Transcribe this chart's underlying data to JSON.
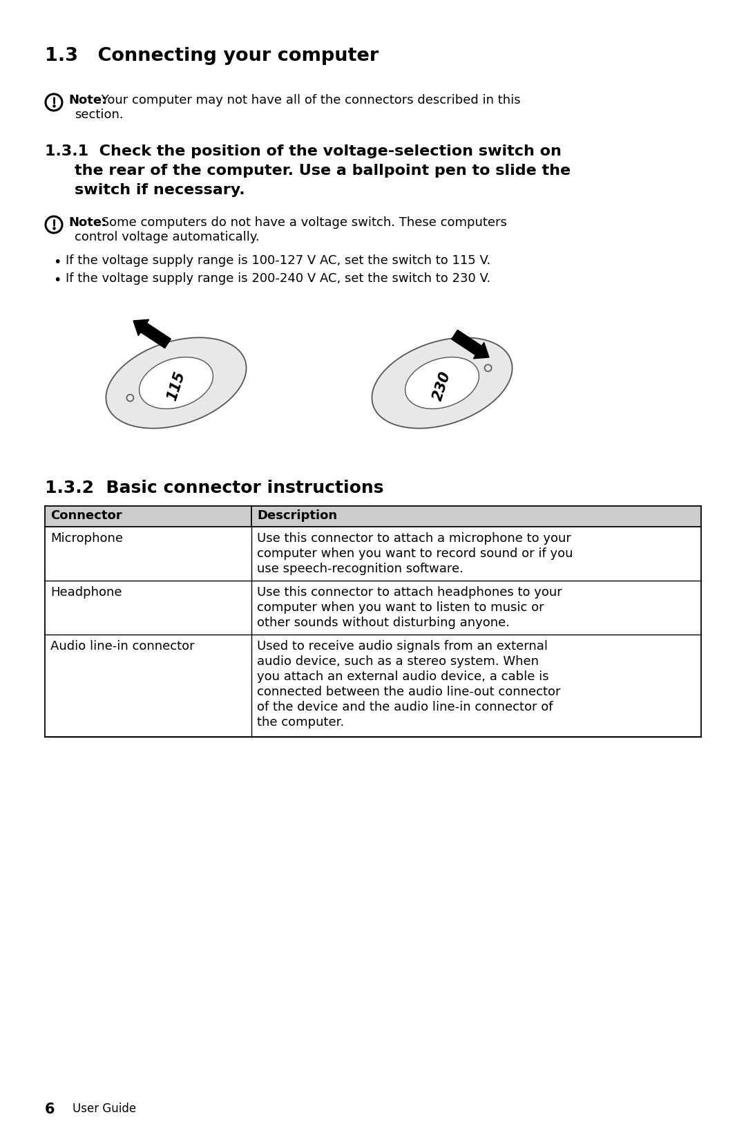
{
  "title_13": "1.3   Connecting your computer",
  "note1_bold": "Note:",
  "note1_rest": " Your computer may not have all of the connectors described in this",
  "note1_rest2": "section.",
  "title_131_line1": "1.3.1  Check the position of the voltage-selection switch on",
  "title_131_line2": "the rear of the computer. Use a ballpoint pen to slide the",
  "title_131_line3": "switch if necessary.",
  "note2_bold": "Note:",
  "note2_rest": " Some computers do not have a voltage switch. These computers",
  "note2_rest2": "control voltage automatically.",
  "bullet1": "If the voltage supply range is 100-127 V AC, set the switch to 115 V.",
  "bullet2": "If the voltage supply range is 200-240 V AC, set the switch to 230 V.",
  "title_132": "1.3.2  Basic connector instructions",
  "table_headers": [
    "Connector",
    "Description"
  ],
  "table_rows": [
    [
      "Microphone",
      "Use this connector to attach a microphone to your\ncomputer when you want to record sound or if you\nuse speech-recognition software."
    ],
    [
      "Headphone",
      "Use this connector to attach headphones to your\ncomputer when you want to listen to music or\nother sounds without disturbing anyone."
    ],
    [
      "Audio line-in connector",
      "Used to receive audio signals from an external\naudio device, such as a stereo system. When\nyou attach an external audio device, a cable is\nconnected between the audio line-out connector\nof the device and the audio line-in connector of\nthe computer."
    ]
  ],
  "footer_num": "6",
  "footer_text": "User Guide",
  "bg_color": "#ffffff",
  "text_color": "#000000",
  "table_col_split": 0.315
}
